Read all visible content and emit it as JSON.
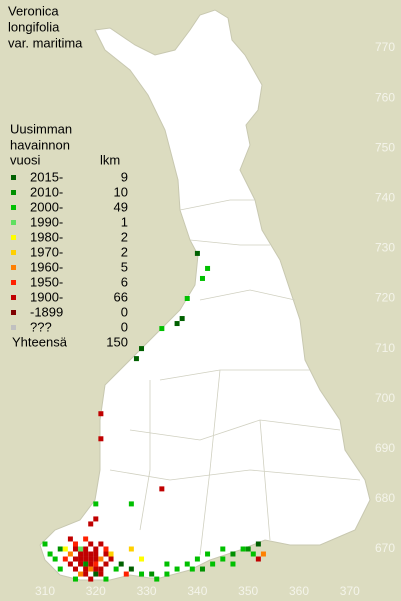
{
  "title": [
    "Veronica",
    "longifolia",
    "var. maritima"
  ],
  "legend": {
    "header": [
      "Uusimman",
      "havainnon",
      "vuosi"
    ],
    "count_header": "lkm",
    "items": [
      {
        "label": "2015-",
        "count": 9,
        "color": "#006000",
        "squares": [
          [
            340,
            729
          ],
          [
            337,
            716
          ],
          [
            336,
            715
          ],
          [
            329,
            710
          ],
          [
            328,
            708
          ],
          [
            352,
            671
          ],
          [
            325,
            667
          ],
          [
            327,
            666
          ],
          [
            320,
            665
          ]
        ]
      },
      {
        "label": "2010-",
        "count": 10,
        "color": "#009000",
        "squares": [
          [
            313,
            670
          ],
          [
            318,
            667
          ],
          [
            331,
            665
          ],
          [
            341,
            666
          ],
          [
            347,
            669
          ],
          [
            350,
            670
          ]
        ]
      },
      {
        "label": "2000-",
        "count": 49,
        "color": "#00c000",
        "squares": [
          [
            342,
            726
          ],
          [
            341,
            724
          ],
          [
            338,
            720
          ],
          [
            333,
            714
          ],
          [
            320,
            679
          ],
          [
            327,
            679
          ],
          [
            310,
            671
          ],
          [
            312,
            668
          ],
          [
            313,
            666
          ],
          [
            311,
            669
          ],
          [
            316,
            664
          ],
          [
            322,
            664
          ],
          [
            324,
            666
          ],
          [
            329,
            665
          ],
          [
            332,
            664
          ],
          [
            334,
            665
          ],
          [
            336,
            666
          ],
          [
            338,
            667
          ],
          [
            340,
            668
          ],
          [
            342,
            669
          ],
          [
            343,
            667
          ],
          [
            345,
            668
          ],
          [
            347,
            667
          ],
          [
            349,
            670
          ],
          [
            351,
            669
          ],
          [
            345,
            670
          ],
          [
            334,
            667
          ],
          [
            339,
            666
          ]
        ]
      },
      {
        "label": "1990-",
        "count": 1,
        "color": "#60e060",
        "squares": [
          [
            317,
            670
          ]
        ]
      },
      {
        "label": "1980-",
        "count": 2,
        "color": "#ffff00",
        "squares": [
          [
            314,
            670
          ],
          [
            329,
            668
          ]
        ]
      },
      {
        "label": "1970-",
        "count": 2,
        "color": "#ffd000",
        "squares": [
          [
            327,
            670
          ],
          [
            323,
            669
          ]
        ]
      },
      {
        "label": "1960-",
        "count": 5,
        "color": "#ff8000",
        "squares": [
          [
            353,
            669
          ],
          [
            321,
            668
          ],
          [
            319,
            666
          ],
          [
            317,
            665
          ],
          [
            315,
            669
          ]
        ]
      },
      {
        "label": "1950-",
        "count": 6,
        "color": "#ff2000",
        "squares": [
          [
            322,
            670
          ],
          [
            318,
            672
          ],
          [
            316,
            671
          ],
          [
            320,
            667
          ],
          [
            326,
            665
          ],
          [
            314,
            668
          ]
        ]
      },
      {
        "label": "1900-",
        "count": 66,
        "color": "#c00000",
        "squares": [
          [
            321,
            697
          ],
          [
            321,
            692
          ],
          [
            333,
            682
          ],
          [
            320,
            676
          ],
          [
            319,
            675
          ],
          [
            315,
            672
          ],
          [
            316,
            670
          ],
          [
            317,
            668
          ],
          [
            318,
            670
          ],
          [
            319,
            671
          ],
          [
            320,
            670
          ],
          [
            319,
            669
          ],
          [
            320,
            669
          ],
          [
            321,
            671
          ],
          [
            317,
            667
          ],
          [
            318,
            666
          ],
          [
            319,
            667
          ],
          [
            320,
            668
          ],
          [
            321,
            666
          ],
          [
            322,
            667
          ],
          [
            318,
            668
          ],
          [
            316,
            668
          ],
          [
            317,
            669
          ],
          [
            318,
            669
          ],
          [
            319,
            668
          ],
          [
            320,
            666
          ],
          [
            318,
            665
          ],
          [
            319,
            664
          ],
          [
            321,
            665
          ],
          [
            322,
            669
          ],
          [
            323,
            668
          ],
          [
            316,
            666
          ],
          [
            315,
            667
          ],
          [
            352,
            668
          ]
        ]
      },
      {
        "label": "-1899",
        "count": 0,
        "color": "#800000",
        "squares": []
      },
      {
        "label": "???",
        "count": 0,
        "color": "#c0c0c0",
        "squares": []
      }
    ],
    "total_label": "Yhteensä",
    "total": 150
  },
  "axes": {
    "northing": [
      770,
      760,
      750,
      740,
      730,
      720,
      710,
      700,
      690,
      680,
      670
    ],
    "easting": [
      310,
      320,
      330,
      340,
      350,
      360,
      370
    ]
  }
}
